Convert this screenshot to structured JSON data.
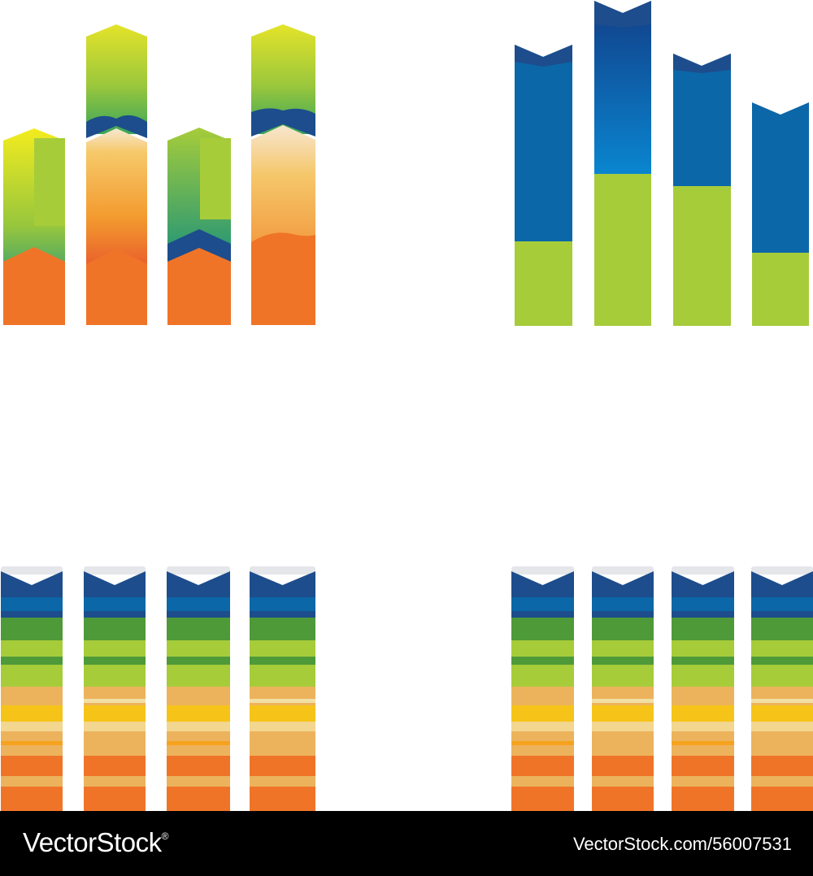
{
  "footer": {
    "logo_text": "VectorStock",
    "logo_mark": "®",
    "image_id": "VectorStock.com/56007531"
  },
  "palette": {
    "orange": "#f07428",
    "navy": "#1d4d8c",
    "blue": "#0b67a8",
    "lime": "#a6cc3a",
    "green": "#4e9a39",
    "sand": "#ecb35c",
    "yellow": "#f6c419",
    "cap": "#e4e6ea"
  }
}
